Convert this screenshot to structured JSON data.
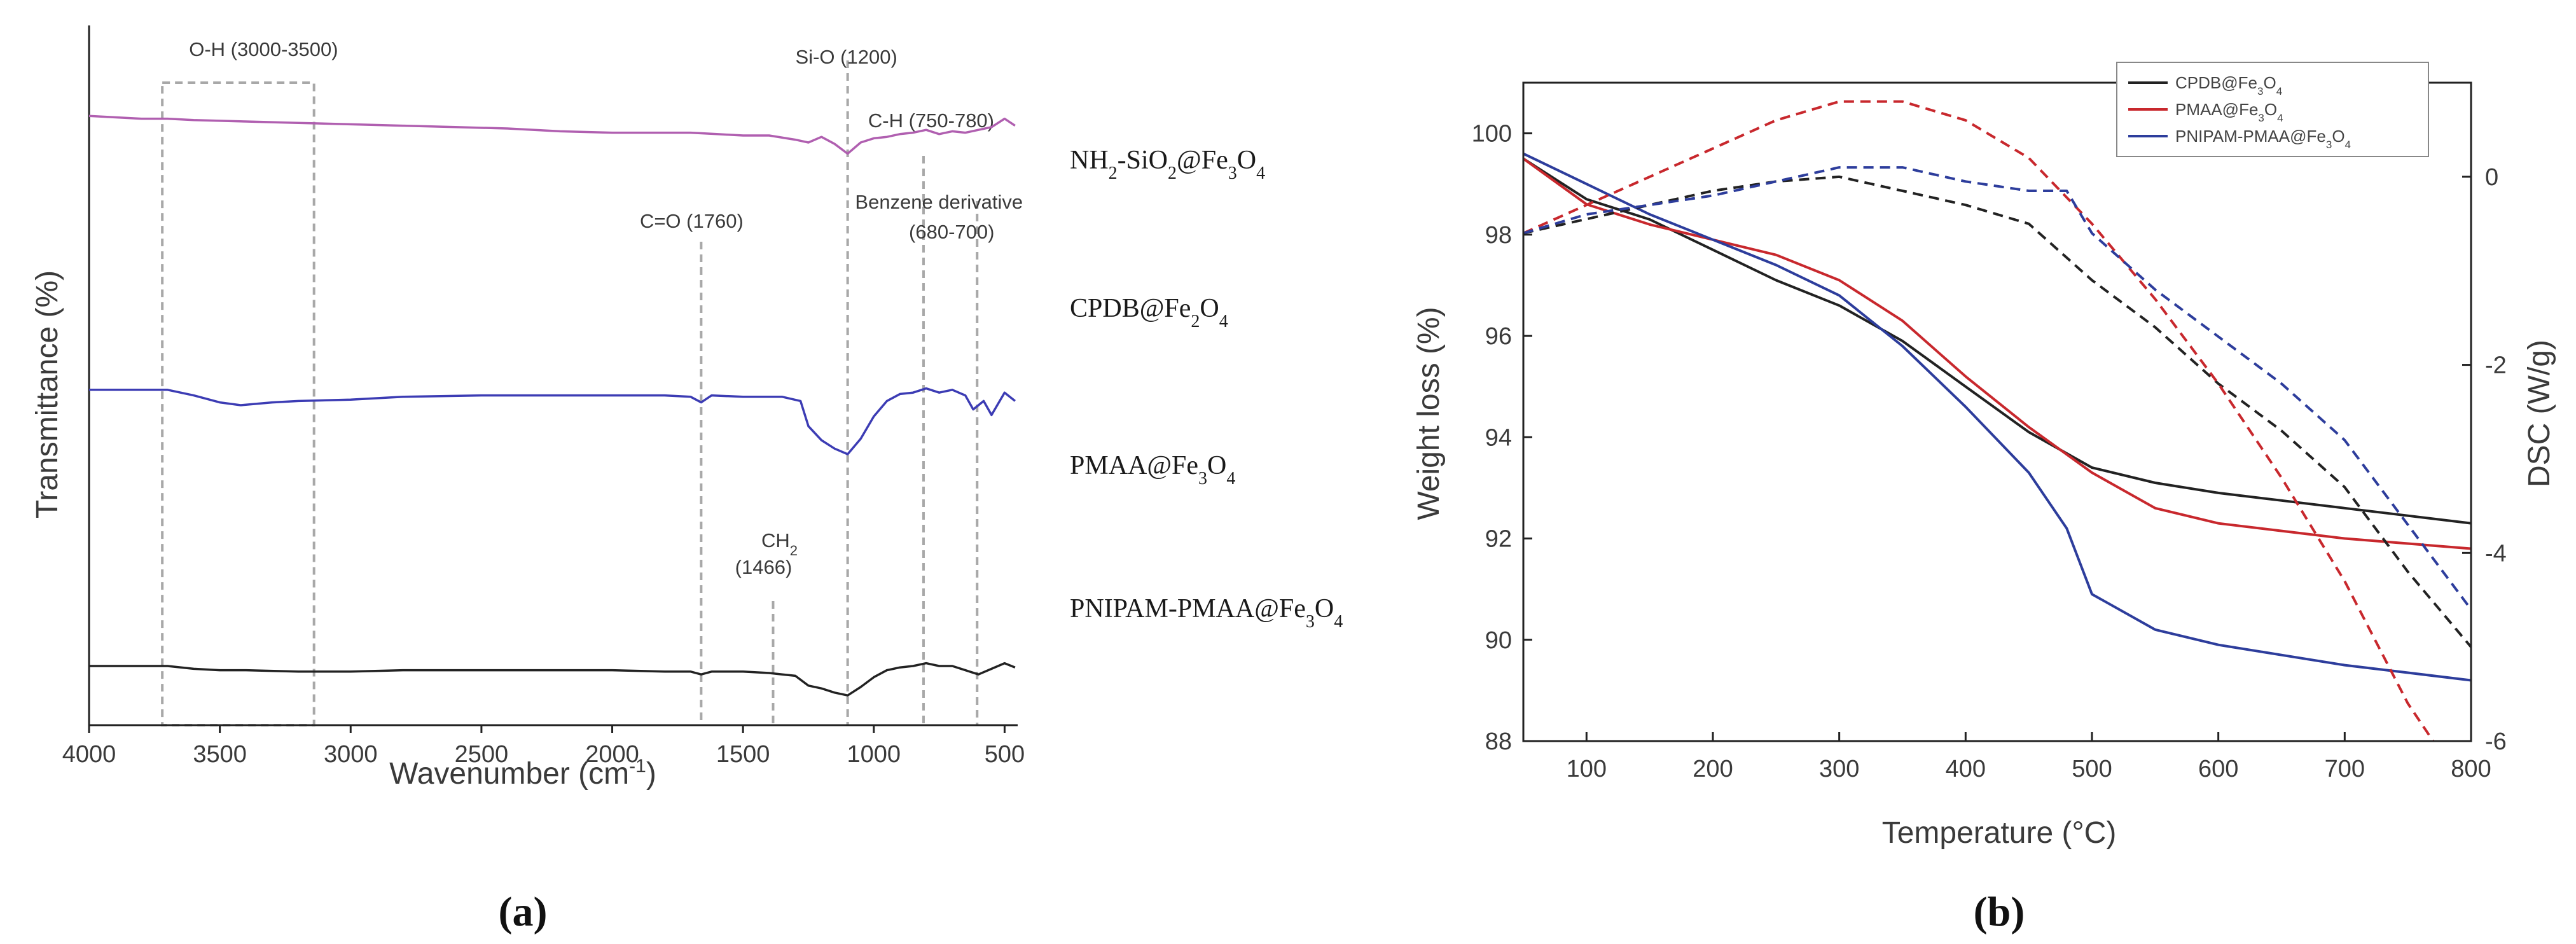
{
  "chart_data": [
    {
      "type": "line",
      "panel_label": "(a)",
      "title": "",
      "xlabel": "Wavenumber (cm",
      "xlabel_sup": "-1",
      "xlabel_close": ")",
      "ylabel": "Transmittance (%)",
      "xlim": [
        4000,
        450
      ],
      "x_reversed": true,
      "xticks": [
        4000,
        3500,
        3000,
        2500,
        2000,
        1500,
        1000,
        500
      ],
      "y_ticks_shown": false,
      "series": [
        {
          "name": "NH2-SiO2@Fe3O4",
          "label_parts": [
            "NH",
            "2",
            "-SiO",
            "2",
            "@Fe",
            "3",
            "O",
            "4"
          ],
          "color": "#b05fb0",
          "x": [
            4000,
            3800,
            3700,
            3600,
            3400,
            3200,
            3000,
            2800,
            2600,
            2400,
            2200,
            2000,
            1800,
            1700,
            1600,
            1500,
            1400,
            1300,
            1250,
            1200,
            1150,
            1100,
            1050,
            1000,
            950,
            900,
            850,
            800,
            750,
            700,
            650,
            600,
            550,
            500,
            460
          ],
          "y": [
            99,
            97,
            97,
            96,
            95,
            94,
            93,
            92,
            91,
            90,
            88,
            87,
            87,
            87,
            86,
            85,
            85,
            82,
            80,
            84,
            79,
            72,
            80,
            83,
            84,
            86,
            87,
            89,
            86,
            88,
            87,
            89,
            91,
            97,
            92
          ]
        },
        {
          "name": "CPDB@Fe2O4",
          "label_parts": [
            "CPDB@Fe",
            "2",
            "O",
            "4"
          ],
          "color": "#3c3cb4",
          "x": [
            4000,
            3800,
            3700,
            3600,
            3500,
            3420,
            3300,
            3200,
            3000,
            2800,
            2500,
            2200,
            2000,
            1800,
            1700,
            1660,
            1620,
            1500,
            1350,
            1280,
            1250,
            1200,
            1150,
            1100,
            1050,
            1000,
            950,
            900,
            850,
            800,
            750,
            700,
            650,
            620,
            580,
            550,
            500,
            460
          ],
          "y": [
            66,
            66,
            66,
            62,
            57,
            55,
            57,
            58,
            59,
            61,
            62,
            62,
            62,
            62,
            61,
            57,
            62,
            61,
            61,
            58,
            40,
            30,
            24,
            20,
            31,
            47,
            58,
            63,
            64,
            67,
            64,
            66,
            62,
            52,
            58,
            48,
            64,
            58
          ]
        },
        {
          "name": "PMAA@Fe3O4",
          "label_parts": [
            "PMAA@Fe",
            "3",
            "O",
            "4"
          ],
          "color": "#222222",
          "x": [
            4000,
            3800,
            3700,
            3600,
            3500,
            3400,
            3200,
            3000,
            2800,
            2500,
            2200,
            2000,
            1800,
            1700,
            1660,
            1620,
            1500,
            1400,
            1350,
            1300,
            1250,
            1200,
            1150,
            1100,
            1050,
            1000,
            950,
            900,
            850,
            800,
            750,
            700,
            650,
            600,
            550,
            500,
            460
          ],
          "y": [
            35,
            35,
            35,
            33,
            32,
            32,
            31,
            31,
            32,
            32,
            32,
            32,
            31,
            31,
            29,
            31,
            31,
            30,
            29,
            28,
            21,
            19,
            16,
            14,
            20,
            27,
            32,
            34,
            35,
            37,
            35,
            35,
            32,
            29,
            33,
            37,
            34
          ]
        },
        {
          "name": "PNIPAM-PMAA@Fe3O4",
          "label_parts": [
            "PNIPAM-PMAA@Fe",
            "3",
            "O",
            "4"
          ],
          "color": "#c03030",
          "x": [
            4000,
            3800,
            3700,
            3600,
            3500,
            3420,
            3300,
            3200,
            3000,
            2800,
            2500,
            2200,
            2000,
            1800,
            1700,
            1660,
            1620,
            1550,
            1460,
            1400,
            1350,
            1300,
            1250,
            1200,
            1150,
            1100,
            1050,
            1000,
            950,
            900,
            850,
            800,
            750,
            700,
            650,
            600,
            550,
            500,
            460
          ],
          "y": [
            9,
            9,
            8,
            6,
            4,
            3,
            4,
            5,
            6,
            7,
            8,
            8,
            8,
            7,
            6,
            3,
            6,
            6,
            5,
            4,
            5,
            4,
            -3,
            -10,
            -13,
            -17,
            -12,
            -4,
            0,
            3,
            5,
            7,
            5,
            6,
            3,
            0,
            4,
            6,
            2
          ]
        }
      ],
      "annotations": {
        "oh_box": {
          "label": "O-H (3000-3500)",
          "x_from": 3720,
          "x_to": 3140
        },
        "lines": [
          {
            "label": "Si-O (1200)",
            "x": 1100
          },
          {
            "label": "C-H (750-780)",
            "x": 810
          },
          {
            "label": "C=O (1760)",
            "x": 1660
          },
          {
            "label": "Benzene derivative",
            "label2": "(680-700)",
            "x": 605
          },
          {
            "label": "CH",
            "label_sub": "2",
            "label2": "(1466)",
            "x": 1385
          }
        ]
      }
    },
    {
      "type": "line",
      "panel_label": "(b)",
      "title": "",
      "xlabel": "Temperature (",
      "xlabel_unit": "°C",
      "xlabel_close": ")",
      "ylabel": "Weight loss (%)",
      "y2label": "DSC (W/g)",
      "xlim": [
        50,
        800
      ],
      "ylim": [
        88,
        101
      ],
      "y2lim": [
        -6,
        1
      ],
      "xticks": [
        100,
        200,
        300,
        400,
        500,
        600,
        700,
        800
      ],
      "yticks": [
        88,
        90,
        92,
        94,
        96,
        98,
        100
      ],
      "y2ticks": [
        -6,
        -4,
        -2,
        0
      ],
      "legend_position": "top-right",
      "series": [
        {
          "name": "CPDB@Fe3O4",
          "label_parts": [
            "CPDB@Fe",
            "3",
            "O",
            "4"
          ],
          "color": "#222222",
          "axis": "left",
          "x": [
            50,
            100,
            150,
            200,
            250,
            300,
            350,
            400,
            450,
            500,
            550,
            600,
            650,
            700,
            750,
            800
          ],
          "y": [
            99.5,
            98.7,
            98.3,
            97.7,
            97.1,
            96.6,
            95.9,
            95.0,
            94.1,
            93.4,
            93.1,
            92.9,
            92.75,
            92.6,
            92.45,
            92.3
          ]
        },
        {
          "name": "PMAA@Fe3O4",
          "label_parts": [
            "PMAA@Fe",
            "3",
            "O",
            "4"
          ],
          "color": "#c8282d",
          "axis": "left",
          "x": [
            50,
            100,
            150,
            200,
            250,
            300,
            350,
            400,
            450,
            500,
            550,
            600,
            650,
            700,
            750,
            800
          ],
          "y": [
            99.5,
            98.6,
            98.2,
            97.9,
            97.6,
            97.1,
            96.3,
            95.2,
            94.2,
            93.3,
            92.6,
            92.3,
            92.15,
            92.0,
            91.9,
            91.8
          ]
        },
        {
          "name": "PNIPAM-PMAA@Fe3O4",
          "label_parts": [
            "PNIPAM-PMAA@Fe",
            "3",
            "O",
            "4"
          ],
          "color": "#2d3d9c",
          "axis": "left",
          "x": [
            50,
            100,
            150,
            200,
            250,
            300,
            350,
            400,
            450,
            480,
            500,
            550,
            600,
            650,
            700,
            750,
            800
          ],
          "y": [
            99.6,
            99.0,
            98.4,
            97.9,
            97.4,
            96.8,
            95.8,
            94.6,
            93.3,
            92.2,
            90.9,
            90.2,
            89.9,
            89.7,
            89.5,
            89.35,
            89.2
          ]
        },
        {
          "name": "CPDB@Fe3O4 DSC",
          "color": "#222222",
          "axis": "right",
          "dashed": true,
          "x": [
            50,
            100,
            150,
            200,
            250,
            300,
            350,
            400,
            450,
            500,
            550,
            600,
            650,
            700,
            750,
            800
          ],
          "y": [
            -0.6,
            -0.45,
            -0.3,
            -0.15,
            -0.05,
            0.0,
            -0.15,
            -0.3,
            -0.5,
            -1.1,
            -1.6,
            -2.2,
            -2.7,
            -3.3,
            -4.2,
            -5.0
          ]
        },
        {
          "name": "PMAA@Fe3O4 DSC",
          "color": "#c8282d",
          "axis": "right",
          "dashed": true,
          "x": [
            50,
            100,
            150,
            200,
            250,
            300,
            350,
            400,
            450,
            500,
            550,
            600,
            650,
            700,
            750,
            770
          ],
          "y": [
            -0.6,
            -0.3,
            0.0,
            0.3,
            0.6,
            0.8,
            0.8,
            0.6,
            0.2,
            -0.5,
            -1.3,
            -2.2,
            -3.2,
            -4.3,
            -5.6,
            -6.0
          ]
        },
        {
          "name": "PNIPAM-PMAA@Fe3O4 DSC",
          "color": "#2d3d9c",
          "axis": "right",
          "dashed": true,
          "x": [
            50,
            100,
            150,
            200,
            250,
            300,
            350,
            400,
            450,
            480,
            500,
            550,
            600,
            650,
            700,
            750,
            800
          ],
          "y": [
            -0.6,
            -0.4,
            -0.3,
            -0.2,
            -0.05,
            0.1,
            0.1,
            -0.05,
            -0.15,
            -0.15,
            -0.6,
            -1.2,
            -1.7,
            -2.2,
            -2.8,
            -3.7,
            -4.6
          ]
        }
      ]
    }
  ]
}
